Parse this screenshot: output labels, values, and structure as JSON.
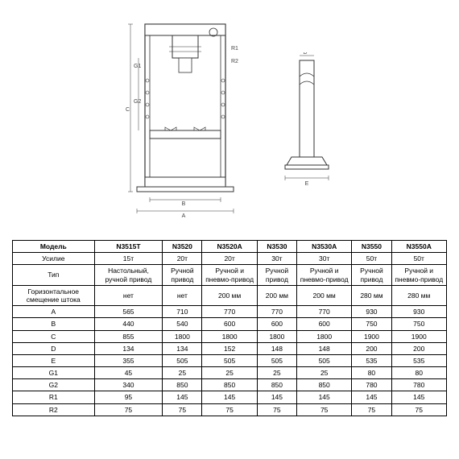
{
  "diagram": {
    "labels": {
      "A": "A",
      "B": "B",
      "C": "C",
      "D": "D",
      "E": "E",
      "G1": "G1",
      "G2": "G2",
      "R1": "R1",
      "R2": "R2"
    },
    "stroke_color": "#333333",
    "fill_color": "#ffffff"
  },
  "table": {
    "columns": [
      "Модель",
      "N3515T",
      "N3520",
      "N3520A",
      "N3530",
      "N3530A",
      "N3550",
      "N3550A"
    ],
    "rows": [
      {
        "label": "Усилие",
        "cells": [
          "15т",
          "20т",
          "20т",
          "30т",
          "30т",
          "50т",
          "50т"
        ]
      },
      {
        "label": "Тип",
        "cells": [
          "Настольный, ручной привод",
          "Ручной привод",
          "Ручной и пневмо-привод",
          "Ручной привод",
          "Ручной и пневмо-привод",
          "Ручной привод",
          "Ручной и пневмо-привод"
        ]
      },
      {
        "label": "Горизонтальное смещение штока",
        "cells": [
          "нет",
          "нет",
          "200 мм",
          "200 мм",
          "200 мм",
          "280 мм",
          "280 мм"
        ]
      },
      {
        "label": "A",
        "cells": [
          "565",
          "710",
          "770",
          "770",
          "770",
          "930",
          "930"
        ]
      },
      {
        "label": "B",
        "cells": [
          "440",
          "540",
          "600",
          "600",
          "600",
          "750",
          "750"
        ]
      },
      {
        "label": "C",
        "cells": [
          "855",
          "1800",
          "1800",
          "1800",
          "1800",
          "1900",
          "1900"
        ]
      },
      {
        "label": "D",
        "cells": [
          "134",
          "134",
          "152",
          "148",
          "148",
          "200",
          "200"
        ]
      },
      {
        "label": "E",
        "cells": [
          "355",
          "505",
          "505",
          "505",
          "505",
          "535",
          "535"
        ]
      },
      {
        "label": "G1",
        "cells": [
          "45",
          "25",
          "25",
          "25",
          "25",
          "80",
          "80"
        ]
      },
      {
        "label": "G2",
        "cells": [
          "340",
          "850",
          "850",
          "850",
          "850",
          "780",
          "780"
        ]
      },
      {
        "label": "R1",
        "cells": [
          "95",
          "145",
          "145",
          "145",
          "145",
          "145",
          "145"
        ]
      },
      {
        "label": "R2",
        "cells": [
          "75",
          "75",
          "75",
          "75",
          "75",
          "75",
          "75"
        ]
      }
    ],
    "border_color": "#000000",
    "header_bold": true
  }
}
